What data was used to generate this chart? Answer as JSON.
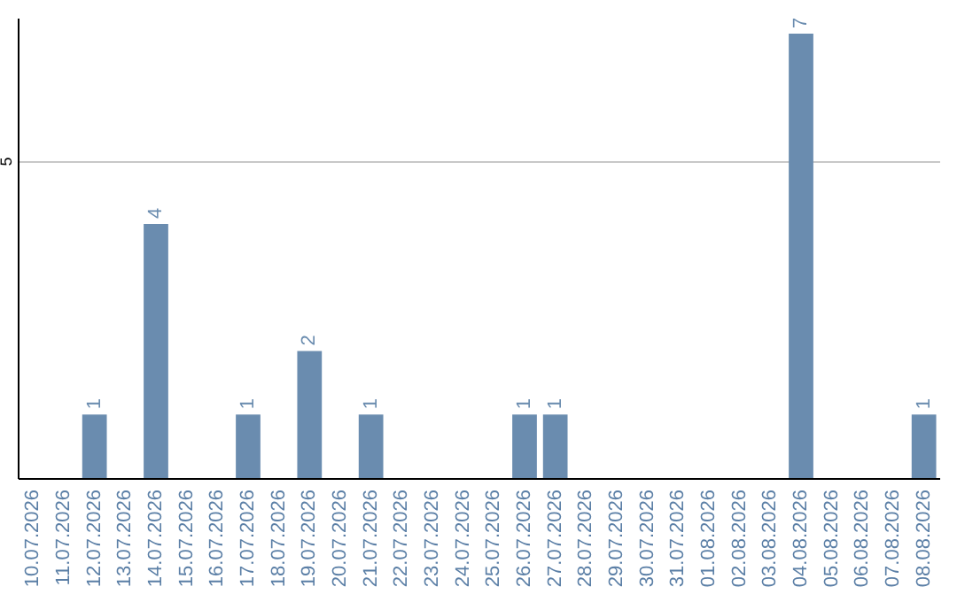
{
  "chart_data": {
    "type": "bar",
    "categories": [
      "10.07.2026",
      "11.07.2026",
      "12.07.2026",
      "13.07.2026",
      "14.07.2026",
      "15.07.2026",
      "16.07.2026",
      "17.07.2026",
      "18.07.2026",
      "19.07.2026",
      "20.07.2026",
      "21.07.2026",
      "22.07.2026",
      "23.07.2026",
      "24.07.2026",
      "25.07.2026",
      "26.07.2026",
      "27.07.2026",
      "28.07.2026",
      "29.07.2026",
      "30.07.2026",
      "31.07.2026",
      "01.08.2026",
      "02.08.2026",
      "03.08.2026",
      "04.08.2026",
      "05.08.2026",
      "06.08.2026",
      "07.08.2026",
      "08.08.2026"
    ],
    "values": [
      null,
      null,
      1,
      null,
      4,
      null,
      null,
      1,
      null,
      2,
      null,
      1,
      null,
      null,
      null,
      null,
      1,
      1,
      null,
      null,
      null,
      null,
      null,
      null,
      null,
      7,
      null,
      null,
      null,
      1
    ],
    "color": "#6a8caf",
    "ylim": [
      0,
      7.25
    ],
    "yticks": [
      5
    ],
    "grid": "y",
    "data_labels": true
  }
}
